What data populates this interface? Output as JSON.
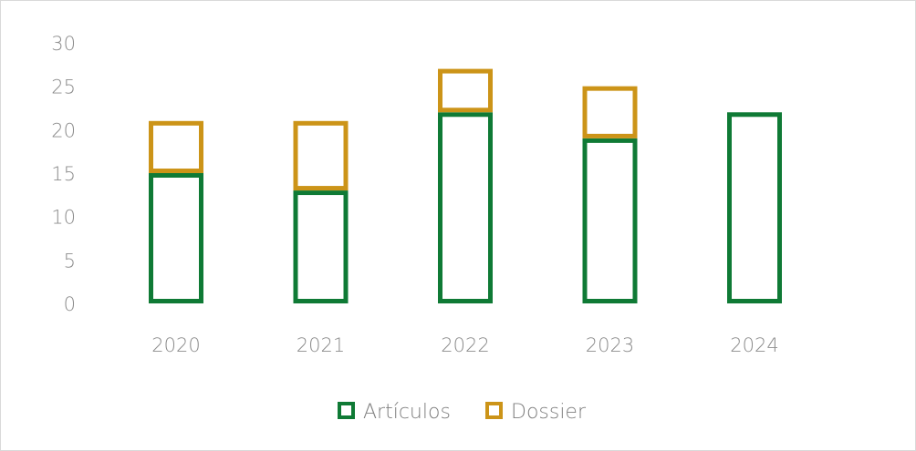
{
  "colors": {
    "articulos": "#0f7a35",
    "dossier": "#cc9418",
    "tick_text": "#8c8c8c"
  },
  "chart_data": {
    "type": "bar",
    "stacked": true,
    "bar_style": "outline",
    "categories": [
      "2020",
      "2021",
      "2022",
      "2023",
      "2024"
    ],
    "series": [
      {
        "name": "Artículos",
        "values": [
          15,
          13,
          22,
          19,
          22
        ]
      },
      {
        "name": "Dossier",
        "values": [
          6,
          8,
          5,
          6,
          0
        ]
      }
    ],
    "ylim": [
      0,
      30
    ],
    "yticks": [
      "0",
      "5",
      "10",
      "15",
      "20",
      "25",
      "30"
    ],
    "grid": false,
    "legend": "bottom",
    "title": "",
    "xlabel": "",
    "ylabel": ""
  }
}
